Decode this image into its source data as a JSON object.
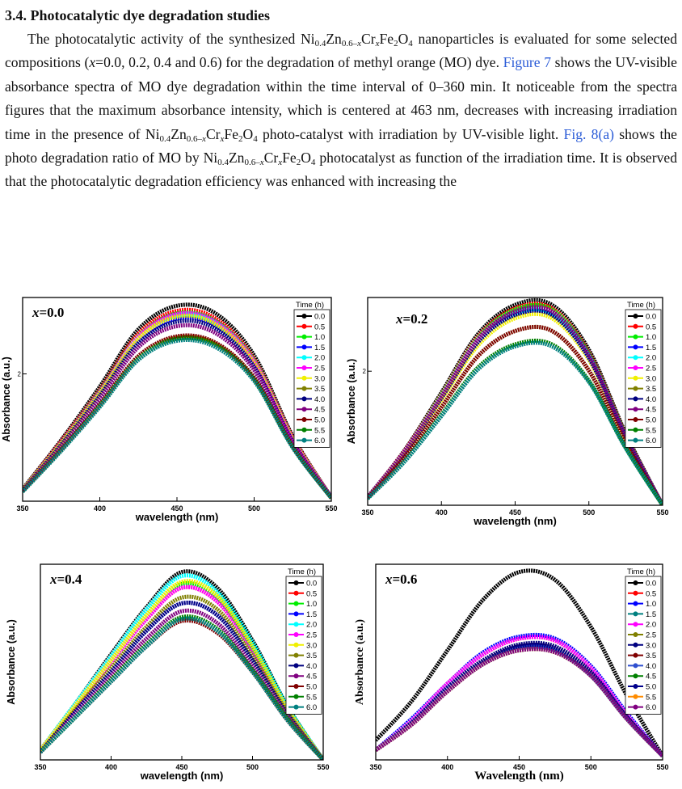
{
  "heading": "3.4. Photocatalytic dye degradation studies",
  "paragraph": [
    {
      "t": "The photocatalytic activity of the synthesized Ni"
    },
    {
      "t": "0.4",
      "sub": true
    },
    {
      "t": "Zn"
    },
    {
      "t": "0.6–",
      "sub": true
    },
    {
      "t": "x",
      "sub": true,
      "i": true
    },
    {
      "t": "Cr"
    },
    {
      "t": "x",
      "sub": true,
      "i": true
    },
    {
      "t": "Fe"
    },
    {
      "t": "2",
      "sub": true
    },
    {
      "t": "O"
    },
    {
      "t": "4",
      "sub": true
    },
    {
      "t": " nanoparticles is evaluated for some selected compositions ("
    },
    {
      "t": "x",
      "i": true
    },
    {
      "t": "=0.0, 0.2, 0.4 and 0.6) for the degradation of methyl orange (MO) dye. "
    },
    {
      "t": "Figure 7",
      "link": true
    },
    {
      "t": " shows the UV-visible absorbance spectra of MO dye degradation within the time interval of 0–360 min. It noticeable from the spectra figures that the maximum absorbance intensity, which is centered at 463 nm, decreases with increasing irradiation time in the presence of Ni"
    },
    {
      "t": "0.4",
      "sub": true
    },
    {
      "t": "Zn"
    },
    {
      "t": "0.6–",
      "sub": true
    },
    {
      "t": "x",
      "sub": true,
      "i": true
    },
    {
      "t": "Cr"
    },
    {
      "t": "x",
      "sub": true,
      "i": true
    },
    {
      "t": "Fe"
    },
    {
      "t": "2",
      "sub": true
    },
    {
      "t": "O"
    },
    {
      "t": "4",
      "sub": true
    },
    {
      "t": " photo-catalyst with irradiation by UV-visible light. "
    },
    {
      "t": "Fig. 8(a)",
      "link": true
    },
    {
      "t": " shows the photo degradation ratio of MO by Ni"
    },
    {
      "t": "0.4",
      "sub": true
    },
    {
      "t": "Zn"
    },
    {
      "t": "0.6–",
      "sub": true
    },
    {
      "t": "x",
      "sub": true,
      "i": true
    },
    {
      "t": "Cr"
    },
    {
      "t": "x",
      "sub": true,
      "i": true
    },
    {
      "t": "Fe"
    },
    {
      "t": "2",
      "sub": true
    },
    {
      "t": "O"
    },
    {
      "t": "4",
      "sub": true
    },
    {
      "t": " photocatalyst as function of the irradiation time. It is observed that the photocatalytic degradation efficiency was enhanced with increasing the"
    }
  ],
  "chart_data": [
    {
      "type": "line",
      "label_var": "x",
      "label_rest": "=0.0",
      "xlabel": "wavelength (nm)",
      "ylabel": "Absorbance (a.u.)",
      "legend_title": "Time (h)",
      "x": [
        350,
        375,
        400,
        425,
        450,
        475,
        500,
        525,
        550
      ],
      "xlim": [
        350,
        550
      ],
      "xticks": [
        350,
        400,
        450,
        500,
        550
      ],
      "ylim": [
        0,
        3.2
      ],
      "yticks": [
        2
      ],
      "series": [
        {
          "name": "0.0",
          "color": "#000000",
          "values": [
            0.19,
            0.96,
            1.8,
            2.7,
            3.07,
            2.95,
            2.29,
            1.02,
            0.06
          ]
        },
        {
          "name": "0.5",
          "color": "#ff0000",
          "values": [
            0.18,
            0.94,
            1.75,
            2.63,
            2.99,
            2.87,
            2.23,
            1.0,
            0.06
          ]
        },
        {
          "name": "1.0",
          "color": "#00ee00",
          "values": [
            0.18,
            0.92,
            1.73,
            2.59,
            2.95,
            2.83,
            2.21,
            0.98,
            0.06
          ]
        },
        {
          "name": "1.5",
          "color": "#0000ff",
          "values": [
            0.17,
            0.9,
            1.68,
            2.52,
            2.87,
            2.76,
            2.15,
            0.96,
            0.06
          ]
        },
        {
          "name": "2.0",
          "color": "#00ffff",
          "values": [
            0.18,
            0.91,
            1.71,
            2.57,
            2.92,
            2.8,
            2.18,
            0.97,
            0.06
          ]
        },
        {
          "name": "2.5",
          "color": "#ff00ff",
          "values": [
            0.18,
            0.92,
            1.72,
            2.58,
            2.94,
            2.82,
            2.2,
            0.98,
            0.06
          ]
        },
        {
          "name": "3.0",
          "color": "#f0f000",
          "values": [
            0.18,
            0.91,
            1.7,
            2.55,
            2.9,
            2.78,
            2.17,
            0.97,
            0.06
          ]
        },
        {
          "name": "3.5",
          "color": "#808000",
          "values": [
            0.16,
            0.81,
            1.51,
            2.26,
            2.57,
            2.47,
            1.92,
            0.86,
            0.05
          ]
        },
        {
          "name": "4.0",
          "color": "#000080",
          "values": [
            0.17,
            0.88,
            1.65,
            2.48,
            2.82,
            2.71,
            2.11,
            0.94,
            0.06
          ]
        },
        {
          "name": "4.5",
          "color": "#800080",
          "values": [
            0.17,
            0.86,
            1.61,
            2.42,
            2.75,
            2.64,
            2.06,
            0.92,
            0.06
          ]
        },
        {
          "name": "5.0",
          "color": "#800000",
          "values": [
            0.16,
            0.81,
            1.52,
            2.28,
            2.59,
            2.49,
            1.94,
            0.86,
            0.05
          ]
        },
        {
          "name": "5.5",
          "color": "#008000",
          "values": [
            0.15,
            0.8,
            1.5,
            2.24,
            2.55,
            2.45,
            1.91,
            0.85,
            0.05
          ]
        },
        {
          "name": "6.0",
          "color": "#008080",
          "values": [
            0.15,
            0.79,
            1.48,
            2.22,
            2.52,
            2.42,
            1.89,
            0.84,
            0.05
          ]
        }
      ]
    },
    {
      "type": "line",
      "label_var": "x",
      "label_rest": "=0.2",
      "xlabel": "wavelength (nm)",
      "ylabel": "Absorbance (a.u.)",
      "legend_title": "Time (h)",
      "x": [
        350,
        375,
        400,
        425,
        450,
        475,
        500,
        525,
        550
      ],
      "xlim": [
        350,
        550
      ],
      "xticks": [
        350,
        400,
        450,
        500,
        550
      ],
      "ylim": [
        0,
        3.1
      ],
      "yticks": [
        2
      ],
      "series": [
        {
          "name": "0.0",
          "color": "#000000",
          "values": [
            0.12,
            0.82,
            1.68,
            2.56,
            2.99,
            2.99,
            2.32,
            1.07,
            0.0
          ]
        },
        {
          "name": "0.5",
          "color": "#ff0000",
          "values": [
            0.12,
            0.81,
            1.65,
            2.52,
            2.94,
            2.94,
            2.28,
            1.05,
            0.0
          ]
        },
        {
          "name": "1.0",
          "color": "#00ee00",
          "values": [
            0.12,
            0.8,
            1.64,
            2.5,
            2.92,
            2.92,
            2.26,
            1.04,
            0.0
          ]
        },
        {
          "name": "1.5",
          "color": "#0000ff",
          "values": [
            0.12,
            0.78,
            1.6,
            2.44,
            2.84,
            2.84,
            2.2,
            1.02,
            0.0
          ]
        },
        {
          "name": "2.0",
          "color": "#00ffff",
          "values": [
            0.12,
            0.79,
            1.61,
            2.45,
            2.86,
            2.86,
            2.22,
            1.02,
            0.0
          ]
        },
        {
          "name": "2.5",
          "color": "#ff00ff",
          "values": [
            0.12,
            0.8,
            1.62,
            2.48,
            2.89,
            2.89,
            2.24,
            1.03,
            0.0
          ]
        },
        {
          "name": "3.0",
          "color": "#f0f000",
          "values": [
            0.11,
            0.77,
            1.57,
            2.39,
            2.79,
            2.79,
            2.17,
            1.0,
            0.0
          ]
        },
        {
          "name": "3.5",
          "color": "#808000",
          "values": [
            0.11,
            0.72,
            1.46,
            2.23,
            2.6,
            2.6,
            2.01,
            0.93,
            0.0
          ]
        },
        {
          "name": "4.0",
          "color": "#000080",
          "values": [
            0.12,
            0.78,
            1.6,
            2.44,
            2.84,
            2.84,
            2.2,
            1.02,
            0.0
          ]
        },
        {
          "name": "4.5",
          "color": "#800080",
          "values": [
            0.12,
            0.8,
            1.62,
            2.48,
            2.89,
            2.89,
            2.24,
            1.03,
            0.0
          ]
        },
        {
          "name": "5.0",
          "color": "#800000",
          "values": [
            0.11,
            0.72,
            1.46,
            2.23,
            2.6,
            2.6,
            2.01,
            0.93,
            0.0
          ]
        },
        {
          "name": "5.5",
          "color": "#008000",
          "values": [
            0.1,
            0.66,
            1.35,
            2.06,
            2.4,
            2.4,
            1.86,
            0.86,
            0.0
          ]
        },
        {
          "name": "6.0",
          "color": "#008080",
          "values": [
            0.1,
            0.65,
            1.33,
            2.03,
            2.37,
            2.37,
            1.84,
            0.85,
            0.0
          ]
        }
      ]
    },
    {
      "type": "line",
      "label_var": "x",
      "label_rest": "=0.4",
      "xlabel": "wavelength (nm)",
      "ylabel": "Absorbance (a.u.)",
      "legend_title": "Time (h)",
      "x": [
        350,
        375,
        400,
        425,
        450,
        475,
        500,
        525,
        550
      ],
      "xlim": [
        350,
        550
      ],
      "xticks": [
        350,
        400,
        450,
        500,
        550
      ],
      "ylim": [
        0,
        1
      ],
      "series": [
        {
          "name": "0.0",
          "color": "#000000",
          "values": [
            0.05,
            0.29,
            0.54,
            0.78,
            0.96,
            0.88,
            0.61,
            0.27,
            0.0
          ]
        },
        {
          "name": "0.5",
          "color": "#ff0000",
          "values": [
            0.05,
            0.27,
            0.5,
            0.72,
            0.88,
            0.81,
            0.56,
            0.25,
            0.0
          ]
        },
        {
          "name": "1.0",
          "color": "#00ee00",
          "values": [
            0.05,
            0.28,
            0.51,
            0.74,
            0.9,
            0.83,
            0.57,
            0.26,
            0.0
          ]
        },
        {
          "name": "1.5",
          "color": "#0000ff",
          "values": [
            0.04,
            0.25,
            0.45,
            0.66,
            0.8,
            0.74,
            0.51,
            0.23,
            0.0
          ]
        },
        {
          "name": "2.0",
          "color": "#00ffff",
          "values": [
            0.05,
            0.29,
            0.53,
            0.77,
            0.94,
            0.86,
            0.6,
            0.27,
            0.0
          ]
        },
        {
          "name": "2.5",
          "color": "#ff00ff",
          "values": [
            0.05,
            0.27,
            0.5,
            0.72,
            0.88,
            0.81,
            0.56,
            0.25,
            0.0
          ]
        },
        {
          "name": "3.0",
          "color": "#f0f000",
          "values": [
            0.05,
            0.28,
            0.51,
            0.74,
            0.91,
            0.84,
            0.58,
            0.26,
            0.0
          ]
        },
        {
          "name": "3.5",
          "color": "#808000",
          "values": [
            0.04,
            0.26,
            0.47,
            0.68,
            0.83,
            0.77,
            0.53,
            0.24,
            0.0
          ]
        },
        {
          "name": "4.0",
          "color": "#000080",
          "values": [
            0.04,
            0.25,
            0.45,
            0.66,
            0.8,
            0.74,
            0.51,
            0.23,
            0.0
          ]
        },
        {
          "name": "4.5",
          "color": "#800080",
          "values": [
            0.04,
            0.23,
            0.43,
            0.62,
            0.76,
            0.7,
            0.48,
            0.22,
            0.0
          ]
        },
        {
          "name": "5.0",
          "color": "#800000",
          "values": [
            0.04,
            0.22,
            0.4,
            0.58,
            0.71,
            0.65,
            0.45,
            0.2,
            0.0
          ]
        },
        {
          "name": "5.5",
          "color": "#008000",
          "values": [
            0.04,
            0.22,
            0.41,
            0.59,
            0.73,
            0.67,
            0.46,
            0.21,
            0.0
          ]
        },
        {
          "name": "6.0",
          "color": "#008080",
          "values": [
            0.04,
            0.22,
            0.4,
            0.58,
            0.72,
            0.66,
            0.45,
            0.2,
            0.0
          ]
        }
      ]
    },
    {
      "type": "line",
      "label_var": "x",
      "label_rest": "=0.6",
      "xlabel": "Wavelength (nm)",
      "ylabel": "Absorbance (a.u.)",
      "legend_title": "Time (h)",
      "x": [
        350,
        375,
        400,
        425,
        450,
        475,
        500,
        525,
        550
      ],
      "xlim": [
        350,
        550
      ],
      "xticks": [
        350,
        400,
        450,
        500,
        550
      ],
      "ylim": [
        0,
        1
      ],
      "series": [
        {
          "name": "0.0",
          "color": "#000000",
          "values": [
            0.1,
            0.3,
            0.56,
            0.82,
            0.96,
            0.92,
            0.68,
            0.33,
            0.02
          ]
        },
        {
          "name": "0.5",
          "color": "#ff0000",
          "values": [
            0.05,
            0.2,
            0.39,
            0.54,
            0.62,
            0.61,
            0.47,
            0.23,
            0.02
          ]
        },
        {
          "name": "1.0",
          "color": "#0000ff",
          "values": [
            0.05,
            0.21,
            0.39,
            0.55,
            0.63,
            0.62,
            0.48,
            0.24,
            0.02
          ]
        },
        {
          "name": "1.5",
          "color": "#008080",
          "values": [
            0.05,
            0.19,
            0.36,
            0.5,
            0.58,
            0.57,
            0.44,
            0.22,
            0.02
          ]
        },
        {
          "name": "2.0",
          "color": "#ff00ff",
          "values": [
            0.05,
            0.2,
            0.39,
            0.54,
            0.62,
            0.61,
            0.47,
            0.23,
            0.02
          ]
        },
        {
          "name": "2.5",
          "color": "#808000",
          "values": [
            0.05,
            0.19,
            0.36,
            0.5,
            0.58,
            0.57,
            0.44,
            0.22,
            0.02
          ]
        },
        {
          "name": "3.0",
          "color": "#000080",
          "values": [
            0.05,
            0.19,
            0.37,
            0.51,
            0.59,
            0.58,
            0.45,
            0.22,
            0.02
          ]
        },
        {
          "name": "3.5",
          "color": "#800000",
          "values": [
            0.05,
            0.19,
            0.36,
            0.5,
            0.58,
            0.57,
            0.44,
            0.22,
            0.02
          ]
        },
        {
          "name": "4.0",
          "color": "#2f4fcf",
          "values": [
            0.05,
            0.19,
            0.36,
            0.49,
            0.57,
            0.56,
            0.43,
            0.21,
            0.02
          ]
        },
        {
          "name": "4.5",
          "color": "#008000",
          "values": [
            0.05,
            0.18,
            0.35,
            0.49,
            0.56,
            0.55,
            0.43,
            0.21,
            0.02
          ]
        },
        {
          "name": "5.0",
          "color": "#00008b",
          "values": [
            0.05,
            0.19,
            0.36,
            0.5,
            0.58,
            0.57,
            0.44,
            0.22,
            0.02
          ]
        },
        {
          "name": "5.5",
          "color": "#ff8c00",
          "values": [
            0.05,
            0.18,
            0.35,
            0.49,
            0.56,
            0.55,
            0.43,
            0.21,
            0.02
          ]
        },
        {
          "name": "6.0",
          "color": "#800080",
          "values": [
            0.05,
            0.18,
            0.35,
            0.49,
            0.56,
            0.55,
            0.43,
            0.21,
            0.02
          ]
        }
      ]
    }
  ]
}
